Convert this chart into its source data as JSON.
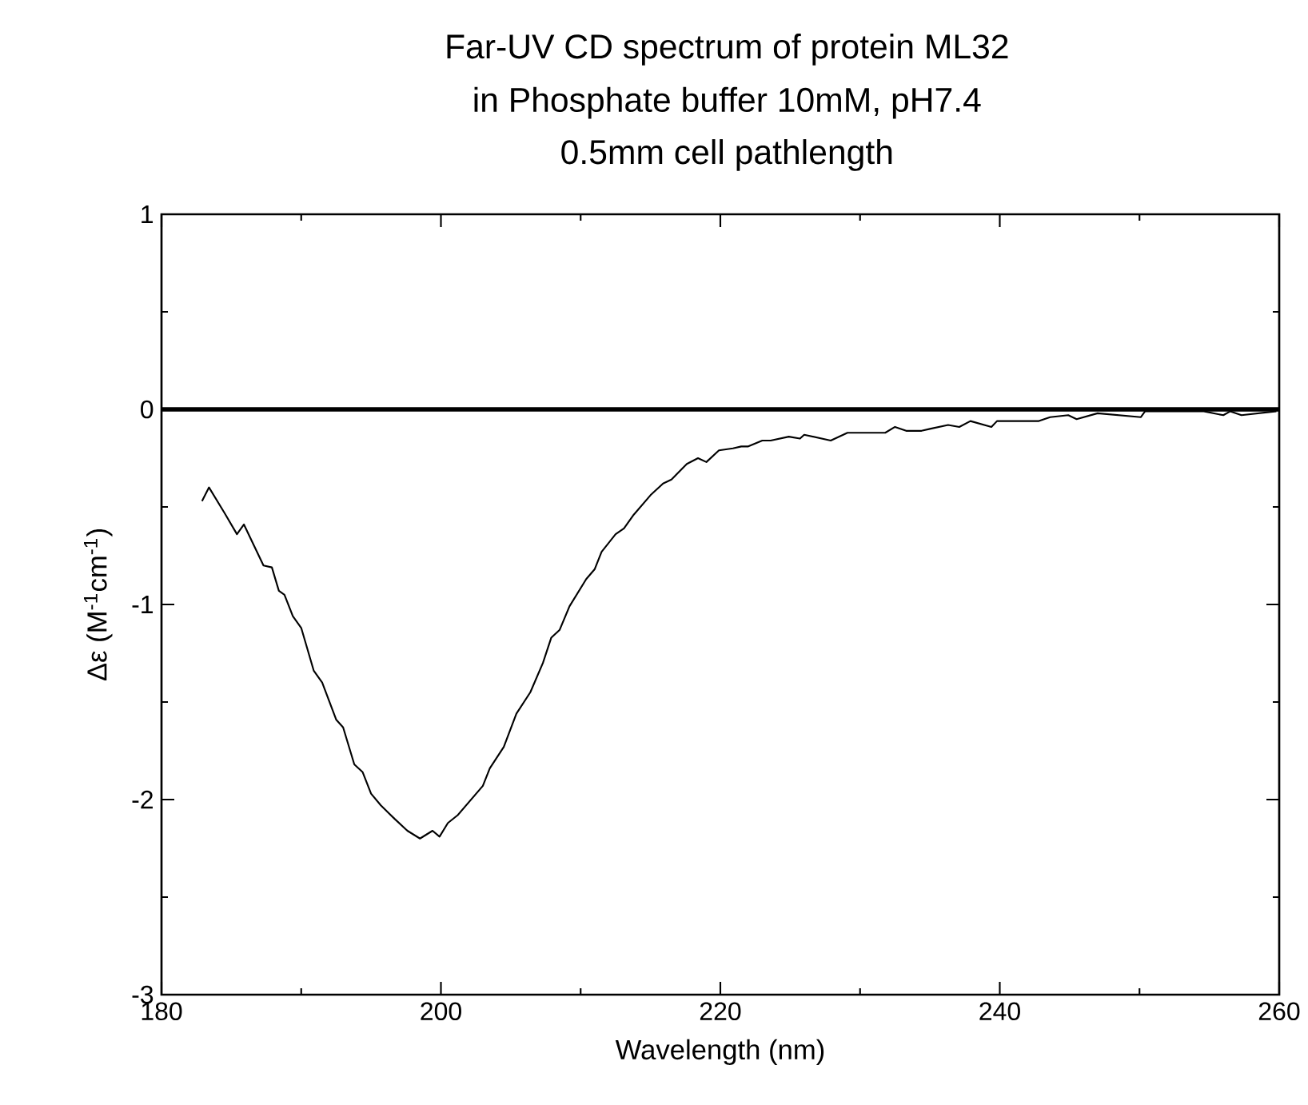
{
  "chart_data": {
    "type": "line",
    "title": "Far-UV CD spectrum of protein ML32",
    "subtitle": "in Phosphate buffer 10mM, pH7.4",
    "annotations": [
      "0.5mm cell pathlength"
    ],
    "xlabel": "Wavelength (nm)",
    "ylabel": "Δε (M$^{-1}$cm$^{-1}$)",
    "xlim": [
      180,
      260
    ],
    "ylim": [
      -3,
      1
    ],
    "xticks": [
      180,
      200,
      220,
      240,
      260
    ],
    "yticks": [
      -3,
      -2,
      -1,
      0,
      1
    ],
    "grid": false,
    "marker": "none",
    "line_style": "solid",
    "ref_lines": [
      {
        "axis": "y",
        "value": 0,
        "color": "#000000"
      }
    ],
    "series": [
      {
        "color": "#000000",
        "x": [
          182.9,
          183.4,
          184.5,
          185.4,
          185.9,
          187.3,
          187.9,
          188.4,
          188.8,
          189.4,
          190.0,
          190.9,
          191.5,
          192.5,
          193.0,
          193.8,
          194.4,
          195.0,
          195.7,
          196.7,
          197.6,
          198.5,
          199.4,
          199.9,
          200.5,
          201.2,
          203.0,
          203.5,
          204.5,
          205.4,
          206.4,
          207.3,
          207.9,
          208.5,
          209.2,
          210.4,
          211.0,
          211.5,
          212.5,
          213.1,
          213.8,
          215.0,
          215.9,
          216.5,
          217.6,
          218.4,
          219.0,
          219.9,
          220.9,
          221.5,
          222.0,
          223.0,
          223.6,
          224.9,
          225.7,
          226.0,
          227.9,
          229.1,
          231.8,
          232.5,
          233.3,
          234.4,
          235.0,
          236.3,
          237.1,
          237.9,
          239.4,
          239.8,
          242.8,
          243.6,
          244.9,
          245.5,
          247.0,
          250.1,
          250.4,
          252.3,
          254.6,
          256.0,
          256.5,
          257.3,
          259.8
        ],
        "values": [
          -0.47,
          -0.4,
          -0.53,
          -0.64,
          -0.59,
          -0.8,
          -0.81,
          -0.93,
          -0.95,
          -1.06,
          -1.12,
          -1.34,
          -1.4,
          -1.59,
          -1.63,
          -1.82,
          -1.86,
          -1.97,
          -2.03,
          -2.1,
          -2.16,
          -2.2,
          -2.16,
          -2.19,
          -2.12,
          -2.08,
          -1.93,
          -1.84,
          -1.73,
          -1.56,
          -1.45,
          -1.3,
          -1.17,
          -1.13,
          -1.01,
          -0.87,
          -0.82,
          -0.73,
          -0.64,
          -0.61,
          -0.54,
          -0.44,
          -0.38,
          -0.36,
          -0.28,
          -0.25,
          -0.27,
          -0.21,
          -0.2,
          -0.19,
          -0.19,
          -0.16,
          -0.16,
          -0.14,
          -0.15,
          -0.13,
          -0.16,
          -0.12,
          -0.12,
          -0.09,
          -0.11,
          -0.11,
          -0.1,
          -0.08,
          -0.09,
          -0.06,
          -0.09,
          -0.06,
          -0.06,
          -0.04,
          -0.03,
          -0.05,
          -0.02,
          -0.04,
          -0.01,
          -0.01,
          -0.01,
          -0.03,
          -0.01,
          -0.03,
          -0.01
        ]
      }
    ]
  }
}
